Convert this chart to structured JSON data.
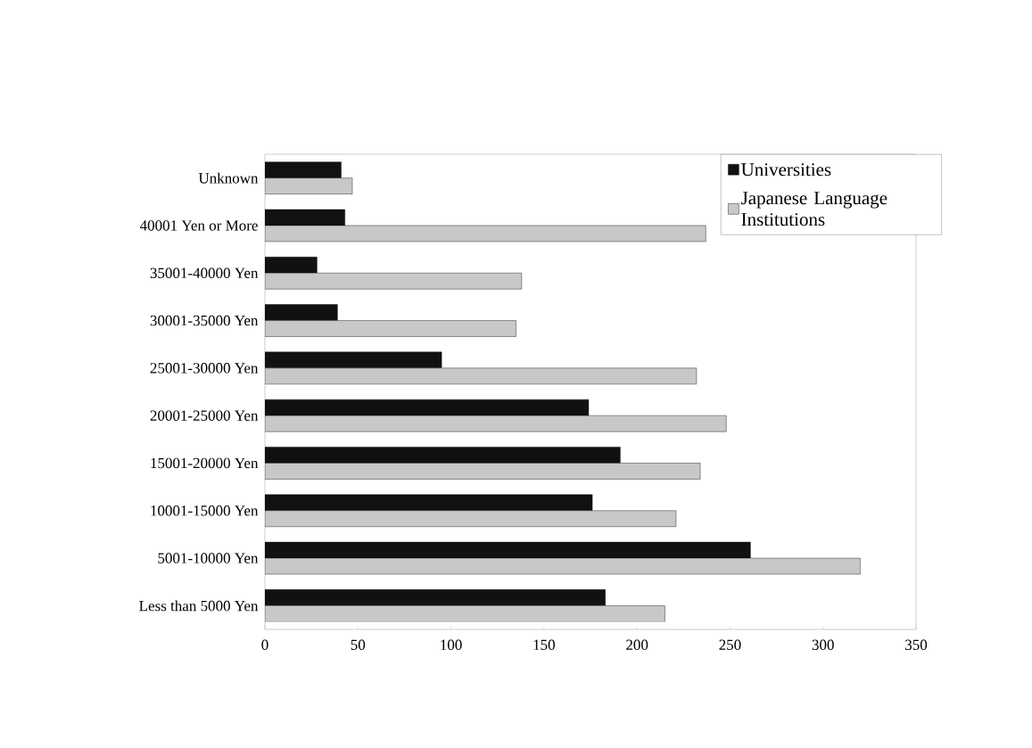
{
  "chart_data": {
    "type": "bar",
    "orientation": "horizontal",
    "categories": [
      "Unknown",
      "40001 Yen or More",
      "35001-40000 Yen",
      "30001-35000 Yen",
      "25001-30000 Yen",
      "20001-25000 Yen",
      "15001-20000 Yen",
      "10001-15000 Yen",
      "5001-10000 Yen",
      "Less than 5000 Yen"
    ],
    "series": [
      {
        "name": "Universities",
        "color": "#111111",
        "values": [
          41,
          43,
          28,
          39,
          95,
          174,
          191,
          176,
          261,
          183
        ]
      },
      {
        "name": "Japanese Language Institutions",
        "color": "#c8c8c8",
        "values": [
          47,
          237,
          138,
          135,
          232,
          248,
          234,
          221,
          320,
          215
        ]
      }
    ],
    "xlim": [
      0,
      350
    ],
    "xticks": [
      0,
      50,
      100,
      150,
      200,
      250,
      300,
      350
    ],
    "legend": "right"
  }
}
